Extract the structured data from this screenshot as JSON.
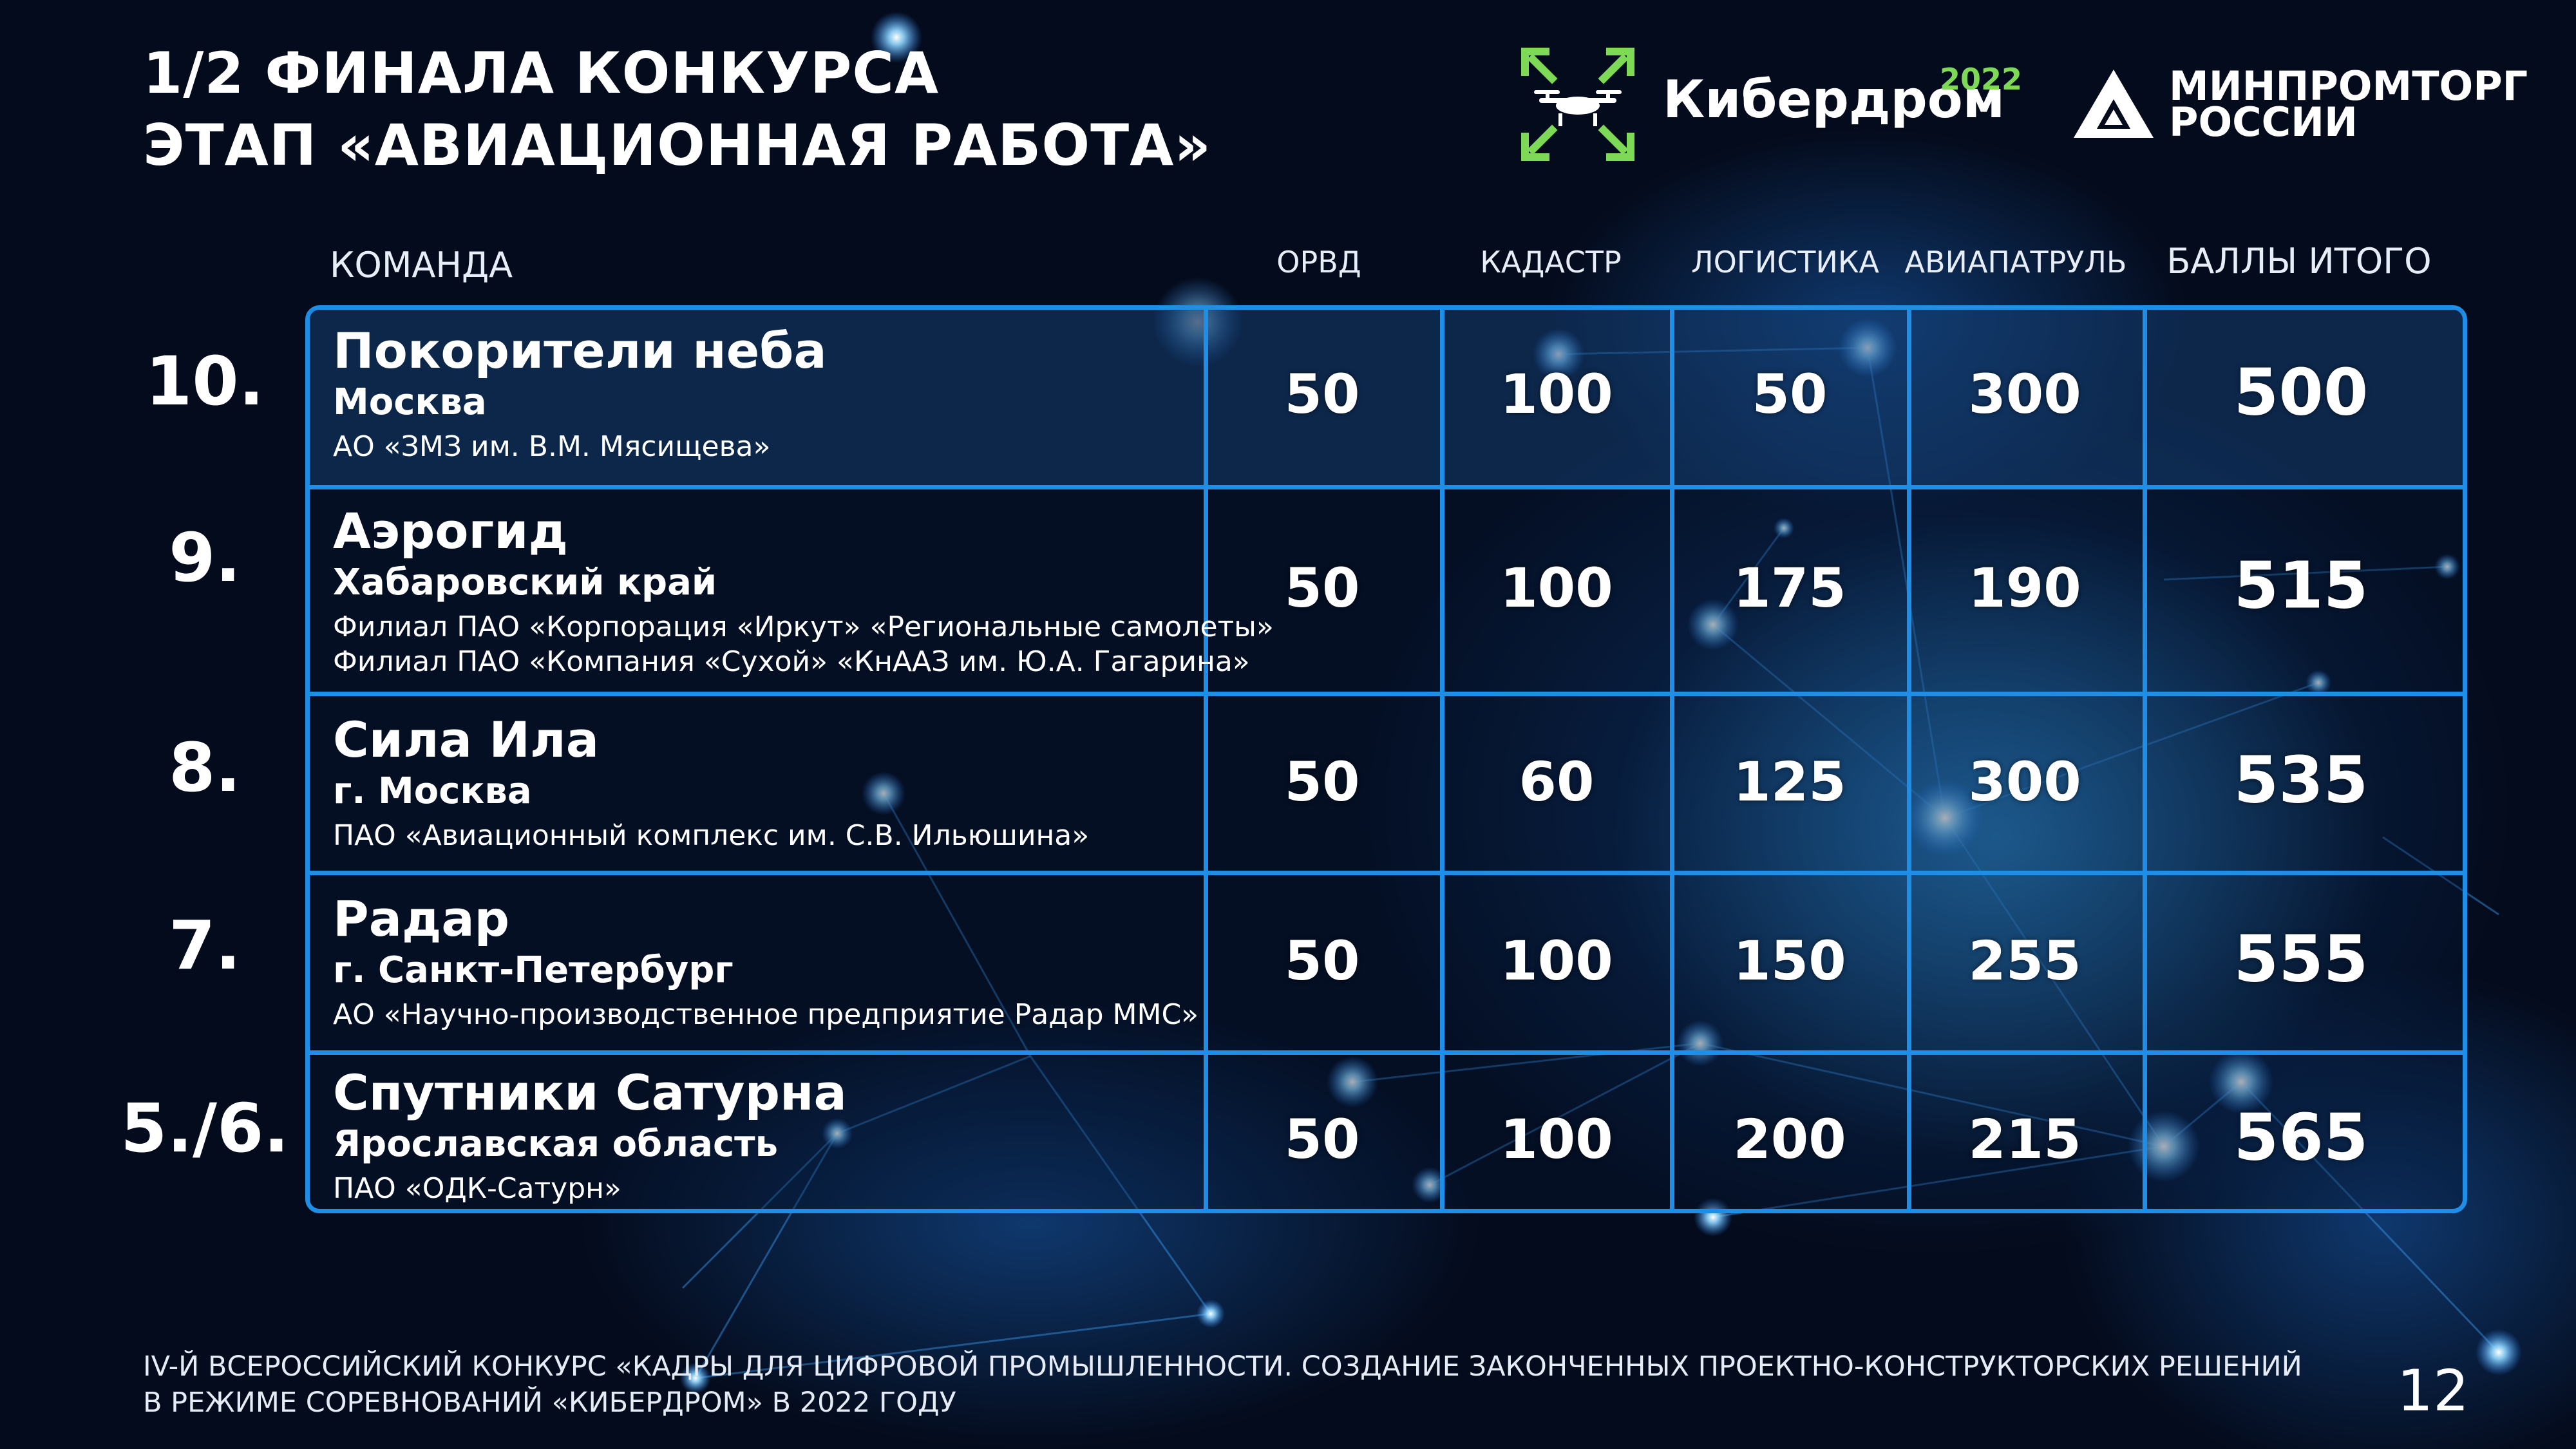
{
  "title": {
    "line1": "1/2 ФИНАЛА КОНКУРСА",
    "line2": "ЭТАП «АВИАЦИОННАЯ РАБОТА»"
  },
  "logos": {
    "kiberdrom": {
      "name": "Кибердром",
      "year": "2022",
      "accent_color": "#7ed957",
      "icon": "drone-icon"
    },
    "minpromtorg": {
      "line1": "МИНПРОМТОРГ",
      "line2": "РОССИИ",
      "icon": "triangle-emblem-icon"
    }
  },
  "table": {
    "headers": {
      "team": "КОМАНДА",
      "orvd": "ОРВД",
      "kadastr": "КАДАСТР",
      "logistika": "ЛОГИСТИКА",
      "aviapatrul": "АВИАПАТРУЛЬ",
      "total": "БАЛЛЫ ИТОГО"
    },
    "rows": [
      {
        "place": "10.",
        "name": "Покорители неба",
        "region": "Москва",
        "org": [
          "АО «ЗМЗ им. В.М. Мясищева»"
        ],
        "orvd": "50",
        "kadastr": "100",
        "logistika": "50",
        "aviapatrul": "300",
        "total": "500"
      },
      {
        "place": "9.",
        "name": "Аэрогид",
        "region": "Хабаровский край",
        "org": [
          "Филиал ПАО «Корпорация «Иркут» «Региональные самолеты»",
          "Филиал ПАО «Компания «Сухой» «КнААЗ им. Ю.А. Гагарина»"
        ],
        "orvd": "50",
        "kadastr": "100",
        "logistika": "175",
        "aviapatrul": "190",
        "total": "515"
      },
      {
        "place": "8.",
        "name": "Сила Ила",
        "region": "г. Москва",
        "org": [
          "ПАО «Авиационный комплекс им. С.В. Ильюшина»"
        ],
        "orvd": "50",
        "kadastr": "60",
        "logistika": "125",
        "aviapatrul": "300",
        "total": "535"
      },
      {
        "place": "7.",
        "name": "Радар",
        "region": "г. Санкт-Петербург",
        "org": [
          "АО «Научно-производственное предприятие Радар ММС»"
        ],
        "orvd": "50",
        "kadastr": "100",
        "logistika": "150",
        "aviapatrul": "255",
        "total": "555"
      },
      {
        "place": "5./6.",
        "name": "Спутники Сатурна",
        "region": "Ярославская область",
        "org": [
          "ПАО «ОДК-Сатурн»"
        ],
        "orvd": "50",
        "kadastr": "100",
        "logistika": "200",
        "aviapatrul": "215",
        "total": "565"
      }
    ]
  },
  "footer": {
    "line1": "IV-Й ВСЕРОССИЙСКИЙ КОНКУРС «КАДРЫ ДЛЯ ЦИФРОВОЙ ПРОМЫШЛЕННОСТИ. СОЗДАНИЕ ЗАКОНЧЕННЫХ ПРОЕКТНО-КОНСТРУКТОРСКИХ РЕШЕНИЙ",
    "line2": "В РЕЖИМЕ СОРЕВНОВАНИЙ «КИБЕРДРОМ» В 2022 ГОДУ"
  },
  "page_number": "12",
  "colors": {
    "background": "#040b1c",
    "table_border": "#1e8ee6",
    "glow": "#2aa8ff"
  }
}
